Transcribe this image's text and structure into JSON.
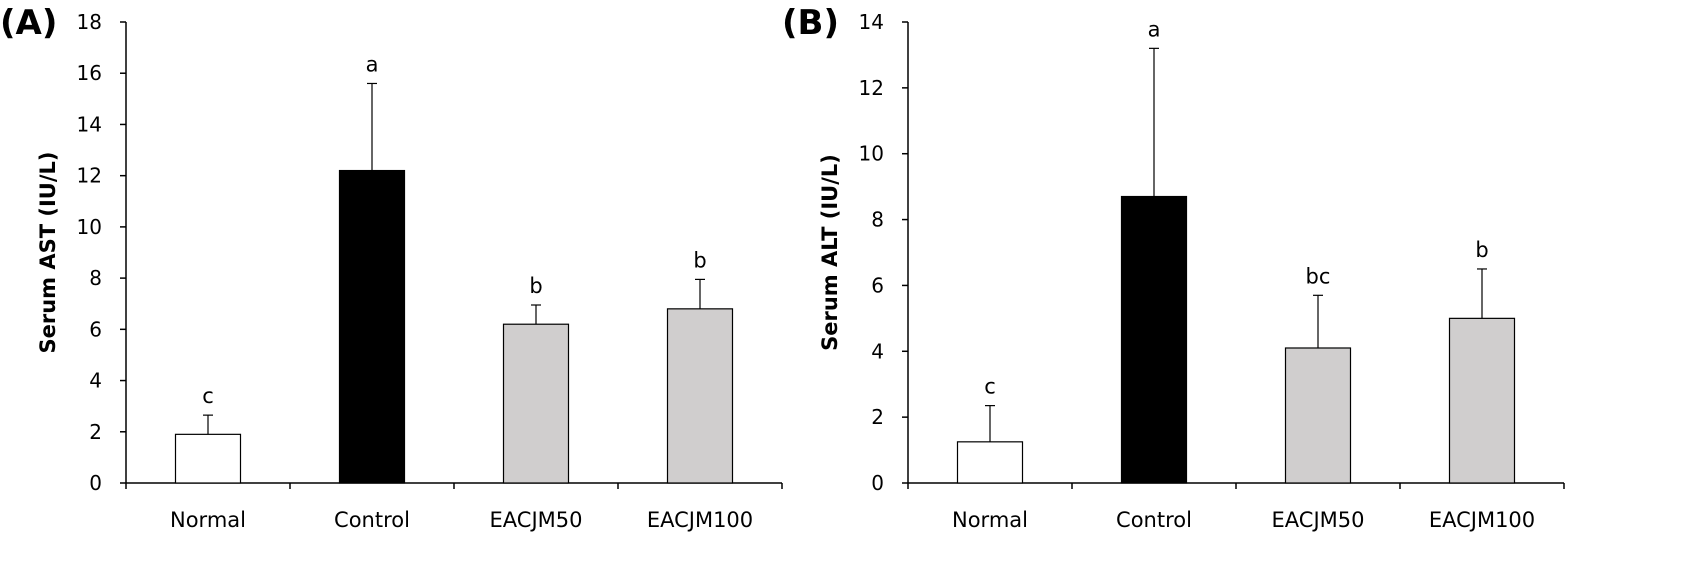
{
  "chart_data": [
    {
      "type": "bar",
      "panel_label": "(A)",
      "ylabel": "Serum AST (IU/L)",
      "xlabel": "",
      "ylim": [
        0,
        18
      ],
      "yticks": [
        0,
        2,
        4,
        6,
        8,
        10,
        12,
        14,
        16,
        18
      ],
      "categories": [
        "Normal",
        "Control",
        "EACJM50",
        "EACJM100"
      ],
      "values": [
        1.9,
        12.2,
        6.2,
        6.8
      ],
      "error_upper": [
        0.75,
        3.4,
        0.75,
        1.15
      ],
      "significance": [
        "c",
        "a",
        "b",
        "b"
      ],
      "bar_colors": [
        "#ffffff",
        "#000000",
        "#d0cece",
        "#d0cece"
      ]
    },
    {
      "type": "bar",
      "panel_label": "(B)",
      "ylabel": "Serum ALT (IU/L)",
      "xlabel": "",
      "ylim": [
        0,
        14
      ],
      "yticks": [
        0,
        2,
        4,
        6,
        8,
        10,
        12,
        14
      ],
      "categories": [
        "Normal",
        "Control",
        "EACJM50",
        "EACJM100"
      ],
      "values": [
        1.25,
        8.7,
        4.1,
        5.0
      ],
      "error_upper": [
        1.1,
        4.5,
        1.6,
        1.5
      ],
      "significance": [
        "c",
        "a",
        "bc",
        "b"
      ],
      "bar_colors": [
        "#ffffff",
        "#000000",
        "#d0cece",
        "#d0cece"
      ]
    }
  ]
}
